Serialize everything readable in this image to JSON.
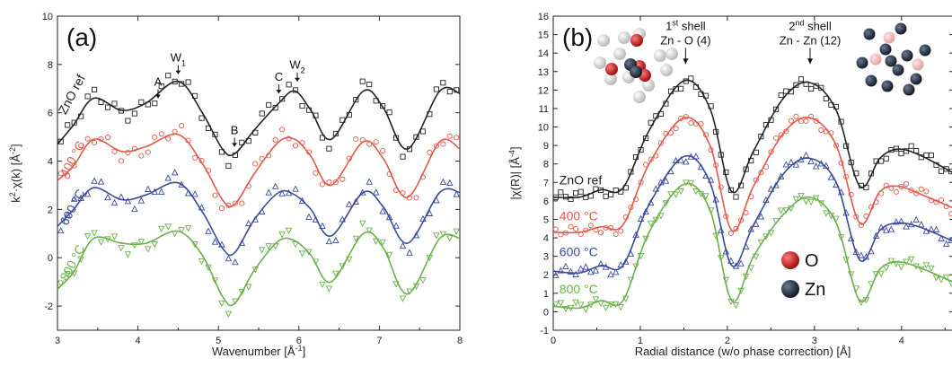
{
  "chart_data": [
    {
      "type": "line",
      "panel_label": "(a)",
      "xlabel": "Wavenumber [Å",
      "xlabel_sup": "-1",
      "xlabel_end": "]",
      "ylabel": "k",
      "ylabel_sup": "2",
      "ylabel_mid": "·χ(k) [Å",
      "ylabel_sup2": "-2",
      "ylabel_end": "]",
      "xlim": [
        3,
        8
      ],
      "ylim": [
        -3,
        10
      ],
      "xticks": [
        "3",
        "4",
        "5",
        "6",
        "7",
        "8"
      ],
      "yticks": [
        "-2",
        "0",
        "2",
        "4",
        "6",
        "8",
        "10"
      ],
      "grid": false,
      "annotations": [
        {
          "text": "A",
          "x": 4.25,
          "y": 6.6
        },
        {
          "text": "W",
          "sub": "1",
          "x": 4.5,
          "y": 7.6
        },
        {
          "text": "B",
          "x": 5.2,
          "y": 4.6
        },
        {
          "text": "C",
          "x": 5.75,
          "y": 6.8
        },
        {
          "text": "W",
          "sub": "2",
          "x": 5.98,
          "y": 7.3
        }
      ],
      "series": [
        {
          "name": "ZnO ref",
          "color": "#222222",
          "marker": "square",
          "x": [
            3.0,
            3.2,
            3.45,
            3.8,
            4.1,
            4.5,
            4.8,
            5.05,
            5.2,
            5.45,
            5.75,
            5.95,
            6.15,
            6.4,
            6.8,
            7.05,
            7.35,
            7.75,
            8.0
          ],
          "fit": [
            4.7,
            5.5,
            6.6,
            6.1,
            6.4,
            7.3,
            6.0,
            4.5,
            4.3,
            5.3,
            6.4,
            6.9,
            6.1,
            4.9,
            6.9,
            6.2,
            4.5,
            6.9,
            6.8
          ]
        },
        {
          "name": "400 °C",
          "color": "#e05a4a",
          "marker": "circle",
          "x": [
            3.0,
            3.2,
            3.45,
            3.8,
            4.1,
            4.5,
            4.8,
            5.05,
            5.2,
            5.45,
            5.75,
            5.95,
            6.15,
            6.4,
            6.8,
            7.05,
            7.35,
            7.75,
            8.0
          ],
          "fit": [
            3.2,
            3.8,
            4.9,
            4.4,
            4.6,
            5.1,
            3.9,
            2.4,
            2.2,
            3.5,
            4.8,
            4.9,
            4.2,
            3.0,
            4.8,
            4.1,
            2.5,
            4.8,
            4.5
          ]
        },
        {
          "name": "600 °C",
          "color": "#3b4a9a",
          "marker": "triangle",
          "x": [
            3.0,
            3.2,
            3.45,
            3.8,
            4.1,
            4.5,
            4.8,
            5.05,
            5.2,
            5.45,
            5.75,
            5.95,
            6.15,
            6.4,
            6.8,
            7.05,
            7.35,
            7.75,
            8.0
          ],
          "fit": [
            1.3,
            2.0,
            2.9,
            2.4,
            2.6,
            3.1,
            1.9,
            0.4,
            0.2,
            1.6,
            2.7,
            2.6,
            2.0,
            0.9,
            2.7,
            2.1,
            0.6,
            2.7,
            2.7
          ]
        },
        {
          "name": "800 °C",
          "color": "#6bb04a",
          "marker": "triangle-down",
          "x": [
            3.0,
            3.2,
            3.45,
            3.8,
            4.1,
            4.5,
            4.8,
            5.05,
            5.2,
            5.45,
            5.75,
            5.95,
            6.15,
            6.4,
            6.8,
            7.05,
            7.35,
            7.75,
            8.0
          ],
          "fit": [
            -1.3,
            -0.6,
            0.8,
            0.6,
            0.6,
            1.1,
            0.1,
            -1.6,
            -1.9,
            -0.5,
            0.7,
            0.7,
            0.1,
            -1.0,
            1.0,
            0.4,
            -1.5,
            0.8,
            0.8
          ]
        }
      ],
      "labels": [
        {
          "text": "ZnO ref",
          "x": 3.1,
          "y": 5.9
        },
        {
          "text": "400 °C",
          "x": 3.12,
          "y": 3.3
        },
        {
          "text": "600 °C",
          "x": 3.12,
          "y": 1.3
        },
        {
          "text": "800 °C",
          "x": 3.12,
          "y": -1.0
        }
      ]
    },
    {
      "type": "line",
      "panel_label": "(b)",
      "xlabel": "Radial distance (w/o phase correction) [Å]",
      "ylabel": "|χ(R)| [Å",
      "ylabel_sup": "-4",
      "ylabel_end": "]",
      "xlim": [
        0,
        4.6
      ],
      "ylim": [
        -1,
        16
      ],
      "xticks": [
        "0",
        "1",
        "2",
        "3",
        "4"
      ],
      "yticks": [
        "-1",
        "0",
        "1",
        "2",
        "3",
        "4",
        "5",
        "6",
        "7",
        "8",
        "9",
        "10",
        "11",
        "12",
        "13",
        "14",
        "15",
        "16"
      ],
      "grid": false,
      "annotations": [
        {
          "text": "1",
          "sup": "st",
          "text2": " shell",
          "line2": "Zn - O (4)",
          "x": 1.52,
          "y": 13.8
        },
        {
          "text": "2",
          "sup": "nd",
          "text2": " shell",
          "line2": "Zn - Zn (12)",
          "x": 2.95,
          "y": 13.8
        }
      ],
      "legend_items": [
        {
          "text": "O",
          "color": "#cc1f1f"
        },
        {
          "text": "Zn",
          "color": "#1e2a3e"
        }
      ],
      "series": [
        {
          "name": "ZnO ref",
          "color": "#222222",
          "marker": "square",
          "x": [
            0,
            0.3,
            0.55,
            0.8,
            1.1,
            1.5,
            1.8,
            2.05,
            2.3,
            2.65,
            2.95,
            3.25,
            3.52,
            3.75,
            3.95,
            4.2,
            4.6
          ],
          "fit": [
            6.2,
            6.2,
            6.6,
            6.7,
            9.8,
            12.5,
            11.0,
            6.5,
            8.7,
            11.6,
            12.4,
            10.9,
            6.8,
            8.3,
            8.8,
            8.5,
            7.5
          ]
        },
        {
          "name": "400 °C",
          "color": "#e05a4a",
          "marker": "circle",
          "x": [
            0,
            0.3,
            0.55,
            0.8,
            1.1,
            1.5,
            1.8,
            2.05,
            2.3,
            2.65,
            2.95,
            3.25,
            3.52,
            3.75,
            3.95,
            4.2,
            4.6
          ],
          "fit": [
            4.3,
            4.3,
            4.6,
            4.7,
            8.0,
            10.5,
            9.0,
            4.4,
            6.8,
            9.7,
            10.5,
            9.0,
            4.8,
            6.5,
            6.8,
            6.4,
            5.6
          ]
        },
        {
          "name": "600 °C",
          "color": "#3b4a9a",
          "marker": "triangle",
          "x": [
            0,
            0.3,
            0.55,
            0.8,
            1.1,
            1.5,
            1.8,
            2.05,
            2.3,
            2.65,
            2.95,
            3.25,
            3.52,
            3.75,
            3.95,
            4.2,
            4.6
          ],
          "fit": [
            2.2,
            2.1,
            2.5,
            2.5,
            5.8,
            8.4,
            7.0,
            2.5,
            4.7,
            7.5,
            8.3,
            7.0,
            2.8,
            4.4,
            4.8,
            4.6,
            3.8
          ]
        },
        {
          "name": "800 °C",
          "color": "#6bb04a",
          "marker": "triangle-down",
          "x": [
            0,
            0.3,
            0.55,
            0.8,
            1.1,
            1.5,
            1.8,
            2.05,
            2.3,
            2.65,
            2.95,
            3.25,
            3.52,
            3.75,
            3.95,
            4.2,
            4.6
          ],
          "fit": [
            0.3,
            0.2,
            0.6,
            0.6,
            4.3,
            6.9,
            5.5,
            0.6,
            3.0,
            5.3,
            6.2,
            4.8,
            0.6,
            2.3,
            2.7,
            2.4,
            1.6
          ]
        }
      ],
      "labels": [
        {
          "text": "ZnO ref",
          "x": 0.07,
          "y": 6.9
        },
        {
          "text": "400 °C",
          "x": 0.07,
          "y": 4.95
        },
        {
          "text": "600 °C",
          "x": 0.07,
          "y": 3.0
        },
        {
          "text": "800 °C",
          "x": 0.07,
          "y": 1.0
        }
      ]
    }
  ]
}
